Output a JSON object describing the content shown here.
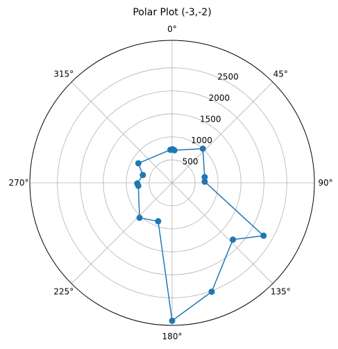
{
  "chart_data": {
    "type": "line",
    "title": "Polar Plot (-3,-2)",
    "theta_unit": "degrees",
    "theta_zero_location": "top",
    "theta_direction": "clockwise",
    "theta_ticks": [
      0,
      45,
      90,
      135,
      180,
      225,
      270,
      315
    ],
    "theta_tick_labels": [
      "0°",
      "45°",
      "90°",
      "135°",
      "180°",
      "225°",
      "270°",
      "315°"
    ],
    "r_ticks": [
      500,
      1000,
      1500,
      2000,
      2500
    ],
    "r_tick_labels": [
      "500",
      "1000",
      "1500",
      "2000",
      "2500"
    ],
    "r_lim": [
      0,
      3100
    ],
    "r_label_angle_deg": 22.5,
    "grid": true,
    "series": [
      {
        "color": "#1f77b4",
        "marker": "circle",
        "points": [
          {
            "theta": 1,
            "r": 730
          },
          {
            "theta": 4,
            "r": 710
          },
          {
            "theta": 42,
            "r": 1000
          },
          {
            "theta": 80,
            "r": 720
          },
          {
            "theta": 88,
            "r": 710
          },
          {
            "theta": 120,
            "r": 2300
          },
          {
            "theta": 133,
            "r": 1810
          },
          {
            "theta": 160,
            "r": 2520
          },
          {
            "theta": 180,
            "r": 3000
          },
          {
            "theta": 200,
            "r": 890
          },
          {
            "theta": 223,
            "r": 1040
          },
          {
            "theta": 265,
            "r": 740
          },
          {
            "theta": 269,
            "r": 760
          },
          {
            "theta": 285,
            "r": 660
          },
          {
            "theta": 300,
            "r": 850
          },
          {
            "theta": 357,
            "r": 720
          },
          {
            "theta": 1,
            "r": 730
          }
        ]
      }
    ]
  }
}
